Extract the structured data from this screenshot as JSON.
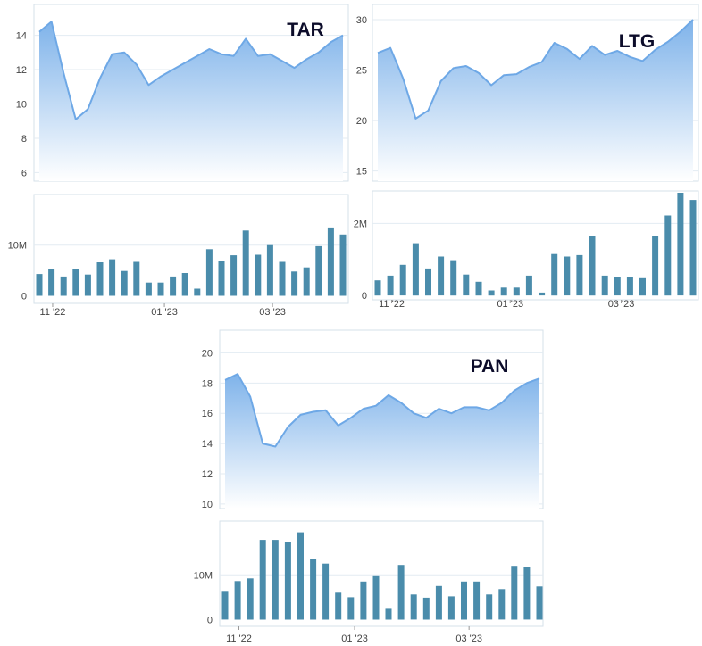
{
  "colors": {
    "area_top": "#7fb3ea",
    "area_bottom": "#ffffff",
    "line": "#6ea8e6",
    "bar": "#4a8cab",
    "grid": "#e3ebf2",
    "frame": "#d6e0ea"
  },
  "chart_data": [
    {
      "type": "area",
      "ticker": "TAR",
      "ylim": [
        5.5,
        15.8
      ],
      "y_ticks": [
        "14",
        "12",
        "10",
        "8",
        "6"
      ],
      "y_tick_values": [
        14,
        12,
        10,
        8,
        6
      ],
      "values": [
        14.2,
        14.8,
        11.8,
        9.1,
        9.7,
        11.5,
        12.9,
        13.0,
        12.3,
        11.1,
        11.6,
        12.0,
        12.4,
        12.8,
        13.2,
        12.9,
        12.8,
        13.8,
        12.8,
        12.9,
        12.5,
        12.1,
        12.6,
        13.0,
        13.6,
        14.0
      ],
      "volume_ylim": [
        -1.5,
        20
      ],
      "volume_ticks": [
        "10M",
        "0"
      ],
      "volume_tick_values": [
        10,
        0
      ],
      "volume": [
        4.3,
        5.3,
        3.8,
        5.3,
        4.2,
        6.6,
        7.2,
        4.9,
        6.7,
        2.6,
        2.6,
        3.8,
        4.5,
        1.4,
        9.2,
        6.9,
        8.0,
        12.9,
        8.1,
        10.0,
        6.7,
        4.8,
        5.6,
        9.8,
        13.5,
        12.1
      ],
      "x_ticks": [
        "11 '22",
        "01 '23",
        "03 '23"
      ],
      "x_tick_index": [
        1.1,
        10.3,
        19.2
      ]
    },
    {
      "type": "area",
      "ticker": "LTG",
      "ylim": [
        14.0,
        31.5
      ],
      "y_ticks": [
        "30",
        "25",
        "20",
        "15"
      ],
      "y_tick_values": [
        30,
        25,
        20,
        15
      ],
      "values": [
        26.7,
        27.2,
        24.2,
        20.2,
        21.0,
        23.9,
        25.2,
        25.4,
        24.7,
        23.5,
        24.5,
        24.6,
        25.3,
        25.8,
        27.7,
        27.1,
        26.1,
        27.4,
        26.5,
        26.9,
        26.3,
        25.9,
        27.0,
        27.8,
        28.8,
        30.0
      ],
      "volume_ylim": [
        -0.12,
        2.9
      ],
      "volume_ticks": [
        "2M",
        "0"
      ],
      "volume_tick_values": [
        2,
        0
      ],
      "volume": [
        0.42,
        0.55,
        0.85,
        1.45,
        0.75,
        1.08,
        0.98,
        0.58,
        0.38,
        0.14,
        0.22,
        0.22,
        0.55,
        0.08,
        1.15,
        1.08,
        1.12,
        1.65,
        0.55,
        0.52,
        0.52,
        0.48,
        1.65,
        2.22,
        2.85,
        2.65
      ],
      "x_ticks": [
        "11 '22",
        "01 '23",
        "03 '23"
      ],
      "x_tick_index": [
        1.1,
        10.5,
        19.3
      ]
    },
    {
      "type": "area",
      "ticker": "PAN",
      "ylim": [
        9.7,
        21.5
      ],
      "y_ticks": [
        "20",
        "18",
        "16",
        "14",
        "12",
        "10"
      ],
      "y_tick_values": [
        20,
        18,
        16,
        14,
        12,
        10
      ],
      "values": [
        18.2,
        18.6,
        17.1,
        14.0,
        13.8,
        15.1,
        15.9,
        16.1,
        16.2,
        15.2,
        15.7,
        16.3,
        16.5,
        17.2,
        16.7,
        16.0,
        15.7,
        16.3,
        16.0,
        16.4,
        16.4,
        16.2,
        16.7,
        17.5,
        18.0,
        18.3
      ],
      "volume_ylim": [
        -1.5,
        22
      ],
      "volume_ticks": [
        "10M",
        "0"
      ],
      "volume_tick_values": [
        10,
        0
      ],
      "volume": [
        6.4,
        8.6,
        9.2,
        17.8,
        17.8,
        17.4,
        19.5,
        13.5,
        12.5,
        6.0,
        5.0,
        8.5,
        9.9,
        2.6,
        12.2,
        5.6,
        4.9,
        7.5,
        5.2,
        8.5,
        8.5,
        5.6,
        6.8,
        12.0,
        11.7,
        7.4
      ],
      "x_ticks": [
        "11 '22",
        "01 '23",
        "03 '23"
      ],
      "x_tick_index": [
        1.1,
        10.3,
        19.4
      ]
    }
  ]
}
